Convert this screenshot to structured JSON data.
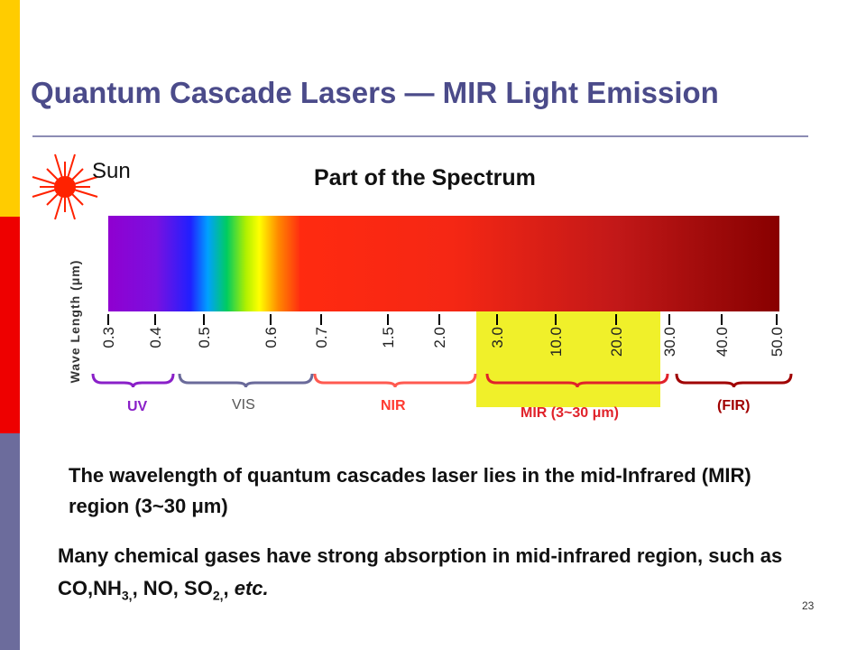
{
  "slide": {
    "title": "Quantum Cascade Lasers — MIR Light Emission",
    "page_number": "23"
  },
  "figure": {
    "sun_label": "Sun",
    "heading": "Part of the Spectrum",
    "axis_label": "Wave Length (μm)",
    "ticks": [
      "0.3",
      "0.4",
      "0.5",
      "0.6",
      "0.7",
      "1.5",
      "2.0",
      "3.0",
      "10.0",
      "20.0",
      "30.0",
      "40.0",
      "50.0"
    ],
    "regions": {
      "uv": "UV",
      "vis": "VIS",
      "nir": "NIR",
      "mir": "MIR (3~30 μm)",
      "fir": "(FIR)"
    },
    "colors": {
      "uv": "#8a20c8",
      "vis": "#6a6a9a",
      "nir": "#ff5a50",
      "mir": "#e0222a",
      "fir": "#a00000",
      "highlight": "#f0f02a",
      "sun": "#ff2200"
    }
  },
  "text": {
    "paragraph_1": "The wavelength of quantum cascades laser lies in the mid-Infrared (MIR) region (3~30 μm)",
    "paragraph_2": {
      "part_1": "Many chemical gases have strong  absorption in mid-infrared region, such as CO,NH",
      "sub_1": "3,",
      "part_2": ", NO, SO",
      "sub_2": "2,",
      "part_3": ", ",
      "italic": "etc."
    }
  }
}
